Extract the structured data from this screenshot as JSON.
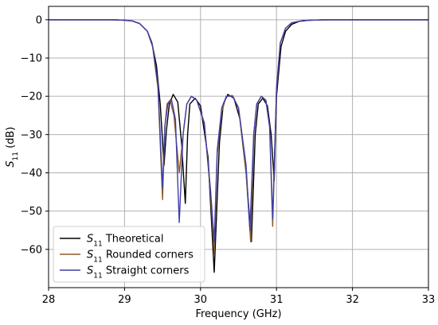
{
  "chart_data": {
    "type": "line",
    "title": "",
    "xlabel": "Frequency (GHz)",
    "ylabel": {
      "symbol": "S",
      "subscript": "11",
      "unit": " (dB)"
    },
    "xlim": [
      28,
      33
    ],
    "ylim": [
      -70,
      3.5
    ],
    "xticks": [
      28,
      29,
      30,
      31,
      32,
      33
    ],
    "yticks": [
      0,
      -10,
      -20,
      -30,
      -40,
      -50,
      -60
    ],
    "grid": true,
    "legend": {
      "placement": "bottom-left"
    },
    "series": [
      {
        "name": "Theoretical",
        "label_symbol": "S",
        "label_subscript": "11",
        "label_text": " Theoretical",
        "color": "#000000",
        "x": [
          28.0,
          28.8,
          29.0,
          29.1,
          29.2,
          29.3,
          29.36,
          29.42,
          29.47,
          29.52,
          29.55,
          29.59,
          29.64,
          29.7,
          29.75,
          29.8,
          29.83,
          29.86,
          29.93,
          30.0,
          30.1,
          30.18,
          30.25,
          30.3,
          30.36,
          30.44,
          30.52,
          30.6,
          30.67,
          30.72,
          30.76,
          30.82,
          30.88,
          30.93,
          30.97,
          31.0,
          31.06,
          31.12,
          31.2,
          31.3,
          31.45,
          31.7,
          33.0
        ],
        "y": [
          0,
          0,
          -0.1,
          -0.3,
          -1.0,
          -3.0,
          -6.0,
          -12.0,
          -22.0,
          -38.0,
          -29.0,
          -22.0,
          -19.5,
          -21.5,
          -32.0,
          -48.0,
          -30.0,
          -22.0,
          -20.5,
          -22.5,
          -36.0,
          -66.0,
          -32.0,
          -22.0,
          -19.5,
          -20.5,
          -26.0,
          -40.0,
          -58.0,
          -30.0,
          -22.0,
          -20.5,
          -22.5,
          -30.0,
          -42.0,
          -20.0,
          -7.0,
          -3.0,
          -1.2,
          -0.4,
          -0.1,
          0,
          0
        ]
      },
      {
        "name": "Rounded corners",
        "label_symbol": "S",
        "label_subscript": "11",
        "label_text": " Rounded corners",
        "color": "#8b5a2b",
        "x": [
          28.0,
          28.9,
          29.1,
          29.2,
          29.3,
          29.37,
          29.44,
          29.5,
          29.53,
          29.56,
          29.6,
          29.65,
          29.72,
          29.77,
          29.82,
          29.88,
          29.95,
          30.05,
          30.13,
          30.18,
          30.22,
          30.28,
          30.34,
          30.42,
          30.5,
          30.6,
          30.66,
          30.7,
          30.74,
          30.8,
          30.86,
          30.91,
          30.95,
          31.0,
          31.05,
          31.12,
          31.2,
          31.35,
          31.6,
          33.0
        ],
        "y": [
          0,
          0,
          -0.3,
          -1.0,
          -3.0,
          -7.0,
          -18.0,
          -47.0,
          -28.0,
          -22.0,
          -21.0,
          -25.0,
          -40.0,
          -30.0,
          -22.0,
          -20.0,
          -21.0,
          -27.0,
          -45.0,
          -61.0,
          -35.0,
          -24.0,
          -20.0,
          -19.8,
          -23.0,
          -40.0,
          -58.0,
          -30.0,
          -22.0,
          -20.0,
          -21.0,
          -28.0,
          -54.0,
          -18.0,
          -6.0,
          -2.2,
          -0.8,
          -0.2,
          0,
          0
        ]
      },
      {
        "name": "Straight corners",
        "label_symbol": "S",
        "label_subscript": "11",
        "label_text": " Straight corners",
        "color": "#3f3fa8",
        "x": [
          28.0,
          28.9,
          29.1,
          29.2,
          29.3,
          29.37,
          29.44,
          29.5,
          29.53,
          29.57,
          29.62,
          29.67,
          29.72,
          29.77,
          29.82,
          29.88,
          29.95,
          30.05,
          30.13,
          30.18,
          30.22,
          30.28,
          30.34,
          30.42,
          30.5,
          30.6,
          30.65,
          30.7,
          30.74,
          30.8,
          30.86,
          30.91,
          30.95,
          31.0,
          31.05,
          31.12,
          31.2,
          31.35,
          31.6,
          33.0
        ],
        "y": [
          0,
          0,
          -0.3,
          -1.0,
          -3.0,
          -7.0,
          -17.0,
          -44.0,
          -28.0,
          -22.0,
          -21.0,
          -26.0,
          -53.0,
          -30.0,
          -22.0,
          -20.0,
          -21.0,
          -27.0,
          -44.0,
          -58.0,
          -34.0,
          -23.0,
          -20.0,
          -20.0,
          -23.0,
          -38.0,
          -55.0,
          -30.0,
          -22.0,
          -20.0,
          -21.0,
          -28.0,
          -52.0,
          -18.0,
          -6.0,
          -2.2,
          -0.8,
          -0.2,
          0,
          0
        ]
      }
    ]
  }
}
